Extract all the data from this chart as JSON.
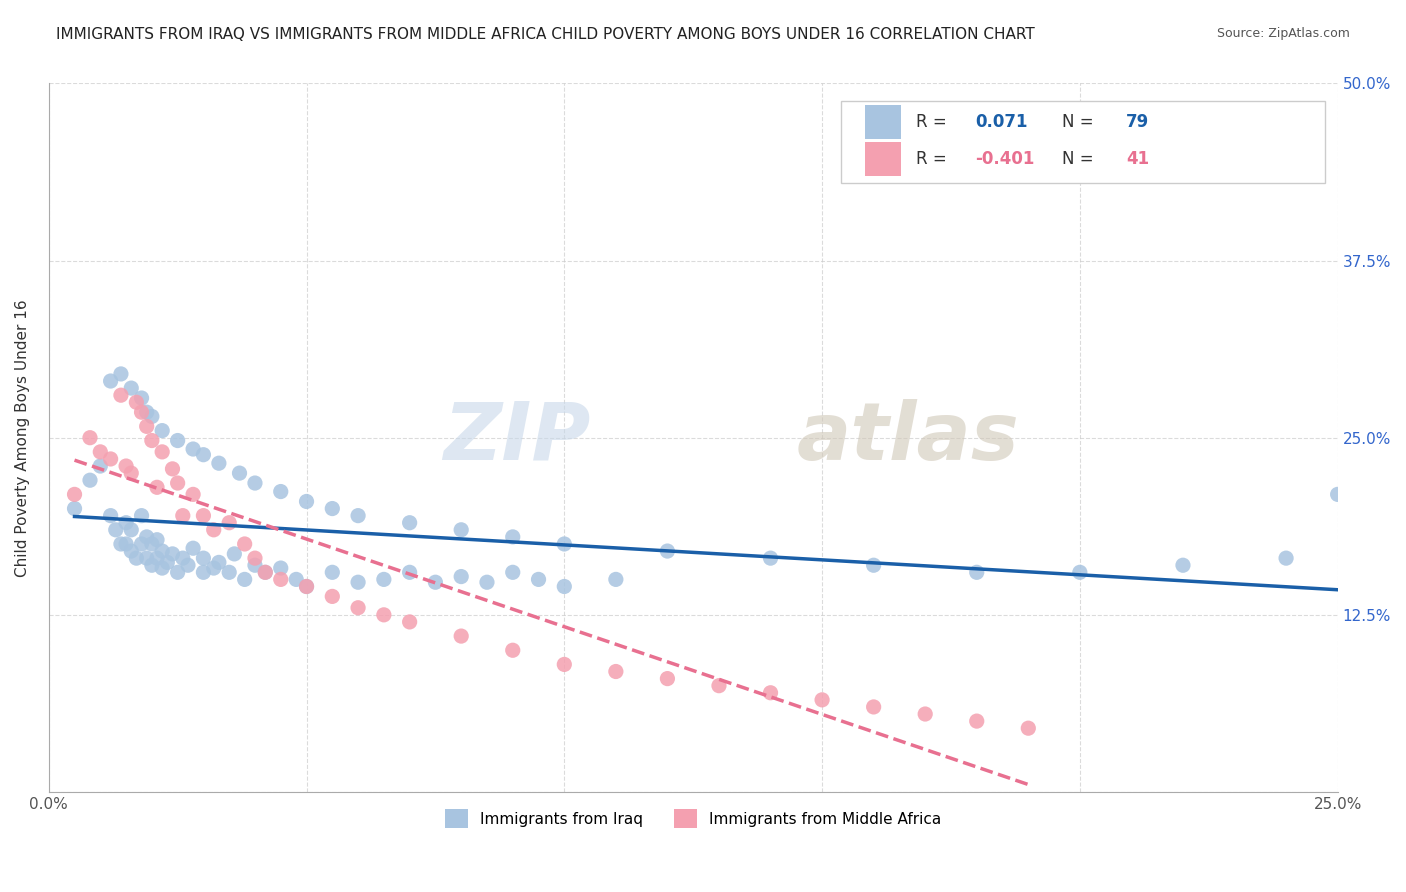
{
  "title": "IMMIGRANTS FROM IRAQ VS IMMIGRANTS FROM MIDDLE AFRICA CHILD POVERTY AMONG BOYS UNDER 16 CORRELATION CHART",
  "source": "Source: ZipAtlas.com",
  "ylabel": "Child Poverty Among Boys Under 16",
  "r_iraq": 0.071,
  "n_iraq": 79,
  "r_africa": -0.401,
  "n_africa": 41,
  "iraq_color": "#a8c4e0",
  "africa_color": "#f4a0b0",
  "iraq_line_color": "#1a5fa8",
  "africa_line_color": "#e87090",
  "watermark_zip": "ZIP",
  "watermark_atlas": "atlas",
  "xlim": [
    0.0,
    0.25
  ],
  "ylim": [
    0.0,
    0.5
  ],
  "xticks": [
    0.0,
    0.05,
    0.1,
    0.15,
    0.2,
    0.25
  ],
  "yticks": [
    0.0,
    0.125,
    0.25,
    0.375,
    0.5
  ],
  "xticklabels": [
    "0.0%",
    "",
    "",
    "",
    "",
    "25.0%"
  ],
  "yticklabels": [
    "",
    "12.5%",
    "25.0%",
    "37.5%",
    "50.0%"
  ],
  "iraq_x": [
    0.005,
    0.008,
    0.01,
    0.012,
    0.013,
    0.014,
    0.015,
    0.015,
    0.016,
    0.016,
    0.017,
    0.018,
    0.018,
    0.019,
    0.019,
    0.02,
    0.02,
    0.021,
    0.021,
    0.022,
    0.022,
    0.023,
    0.024,
    0.025,
    0.026,
    0.027,
    0.028,
    0.03,
    0.03,
    0.032,
    0.033,
    0.035,
    0.036,
    0.038,
    0.04,
    0.042,
    0.045,
    0.048,
    0.05,
    0.055,
    0.06,
    0.065,
    0.07,
    0.075,
    0.08,
    0.085,
    0.09,
    0.095,
    0.1,
    0.11,
    0.012,
    0.014,
    0.016,
    0.018,
    0.019,
    0.02,
    0.022,
    0.025,
    0.028,
    0.03,
    0.033,
    0.037,
    0.04,
    0.045,
    0.05,
    0.055,
    0.06,
    0.07,
    0.08,
    0.09,
    0.1,
    0.12,
    0.14,
    0.16,
    0.18,
    0.2,
    0.22,
    0.24,
    0.25
  ],
  "iraq_y": [
    0.2,
    0.22,
    0.23,
    0.195,
    0.185,
    0.175,
    0.175,
    0.19,
    0.17,
    0.185,
    0.165,
    0.175,
    0.195,
    0.165,
    0.18,
    0.16,
    0.175,
    0.165,
    0.178,
    0.158,
    0.17,
    0.162,
    0.168,
    0.155,
    0.165,
    0.16,
    0.172,
    0.155,
    0.165,
    0.158,
    0.162,
    0.155,
    0.168,
    0.15,
    0.16,
    0.155,
    0.158,
    0.15,
    0.145,
    0.155,
    0.148,
    0.15,
    0.155,
    0.148,
    0.152,
    0.148,
    0.155,
    0.15,
    0.145,
    0.15,
    0.29,
    0.295,
    0.285,
    0.278,
    0.268,
    0.265,
    0.255,
    0.248,
    0.242,
    0.238,
    0.232,
    0.225,
    0.218,
    0.212,
    0.205,
    0.2,
    0.195,
    0.19,
    0.185,
    0.18,
    0.175,
    0.17,
    0.165,
    0.16,
    0.155,
    0.155,
    0.16,
    0.165,
    0.21
  ],
  "africa_x": [
    0.005,
    0.008,
    0.01,
    0.012,
    0.014,
    0.015,
    0.016,
    0.017,
    0.018,
    0.019,
    0.02,
    0.021,
    0.022,
    0.024,
    0.025,
    0.026,
    0.028,
    0.03,
    0.032,
    0.035,
    0.038,
    0.04,
    0.042,
    0.045,
    0.05,
    0.055,
    0.06,
    0.065,
    0.07,
    0.08,
    0.09,
    0.1,
    0.11,
    0.12,
    0.13,
    0.14,
    0.15,
    0.16,
    0.17,
    0.18,
    0.19
  ],
  "africa_y": [
    0.21,
    0.25,
    0.24,
    0.235,
    0.28,
    0.23,
    0.225,
    0.275,
    0.268,
    0.258,
    0.248,
    0.215,
    0.24,
    0.228,
    0.218,
    0.195,
    0.21,
    0.195,
    0.185,
    0.19,
    0.175,
    0.165,
    0.155,
    0.15,
    0.145,
    0.138,
    0.13,
    0.125,
    0.12,
    0.11,
    0.1,
    0.09,
    0.085,
    0.08,
    0.075,
    0.07,
    0.065,
    0.06,
    0.055,
    0.05,
    0.045
  ]
}
